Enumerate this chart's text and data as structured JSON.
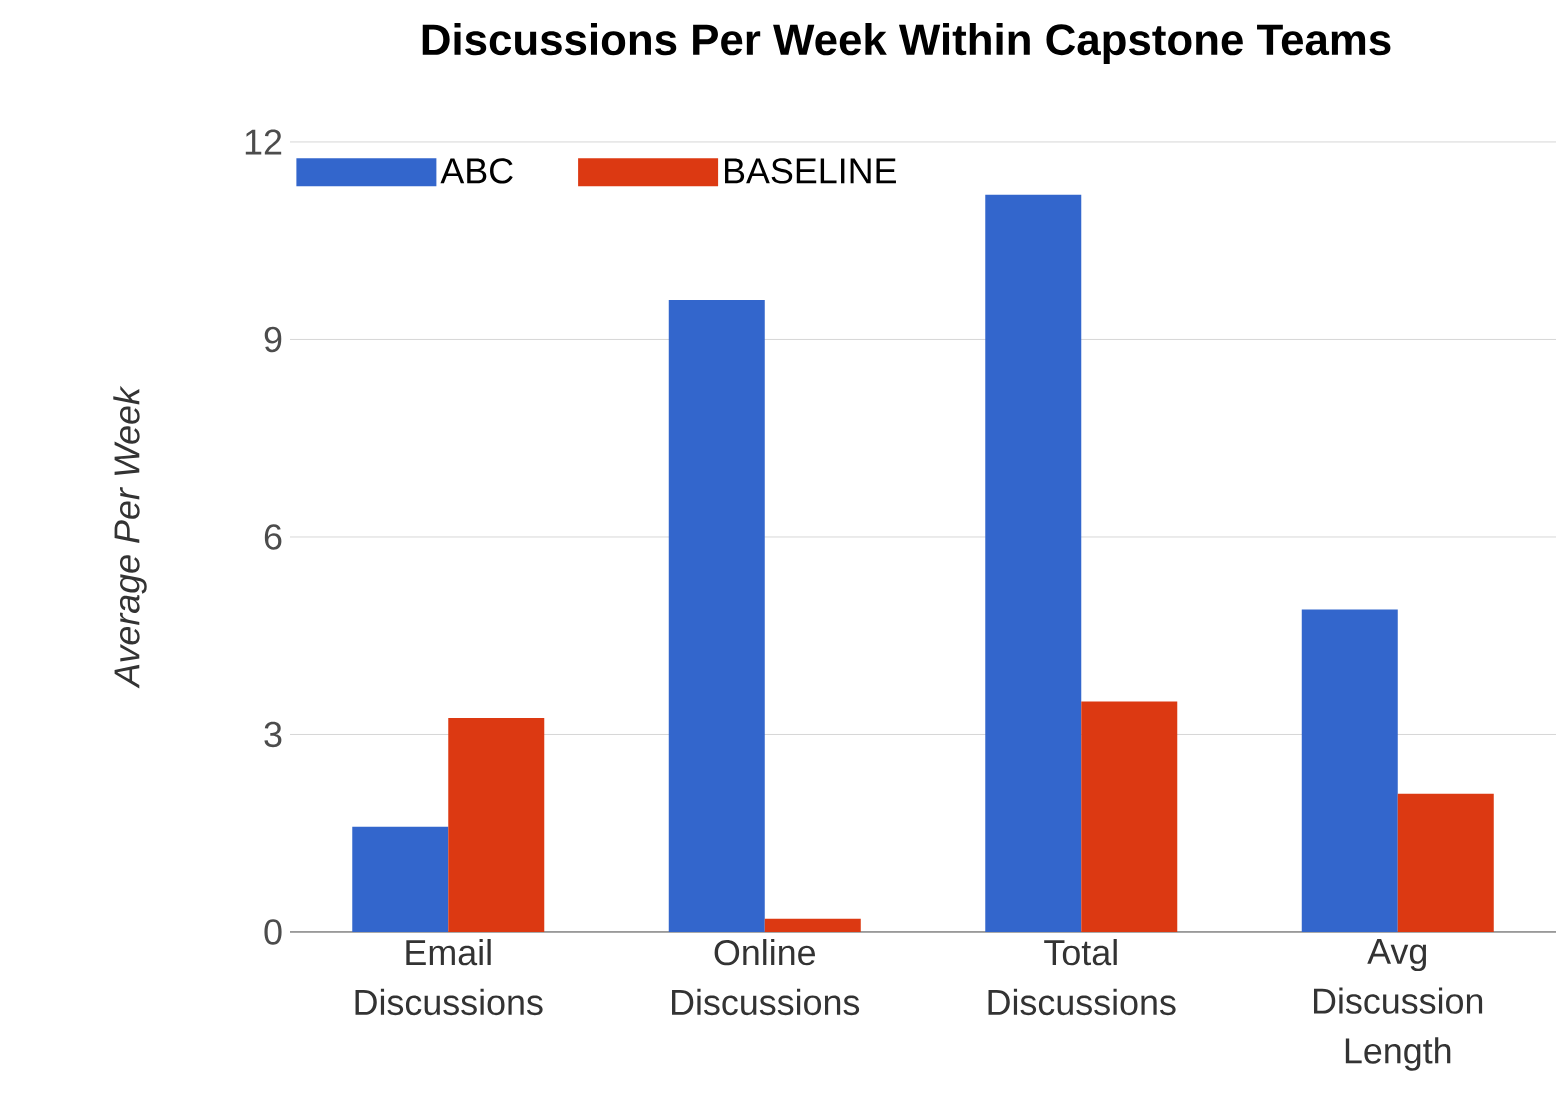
{
  "chart_data": {
    "type": "bar",
    "title": "Discussions Per Week Within Capstone Teams",
    "ylabel": "Average Per Week",
    "categories": [
      "Email Discussions",
      "Online Discussions",
      "Total Discussions",
      "Avg Discussion Length"
    ],
    "series": [
      {
        "name": "ABC",
        "color": "#3366cc",
        "values": [
          1.6,
          9.6,
          11.2,
          4.9
        ]
      },
      {
        "name": "BASELINE",
        "color": "#dc3912",
        "values": [
          3.25,
          0.2,
          3.5,
          2.1
        ]
      }
    ],
    "ylim": [
      0,
      12
    ],
    "yticks": [
      0,
      3,
      6,
      9,
      12
    ],
    "grid": "y",
    "legend": "top left"
  }
}
